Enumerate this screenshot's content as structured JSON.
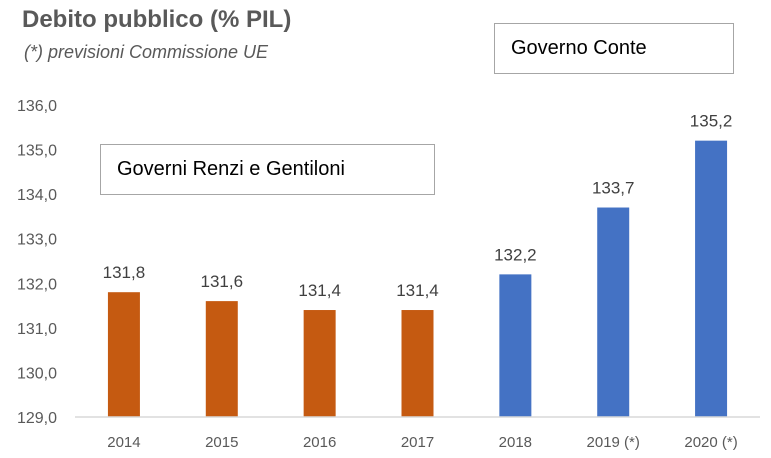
{
  "chart_data": {
    "type": "bar",
    "title": "Debito pubblico (% PIL)",
    "subtitle": "(*) previsioni Commissione UE",
    "categories": [
      "2014",
      "2015",
      "2016",
      "2017",
      "2018",
      "2019 (*)",
      "2020 (*)"
    ],
    "values": [
      131.8,
      131.6,
      131.4,
      131.4,
      132.2,
      133.7,
      135.2
    ],
    "data_labels": [
      "131,8",
      "131,6",
      "131,4",
      "131,4",
      "132,2",
      "133,7",
      "135,2"
    ],
    "ylim": [
      129.0,
      136.0
    ],
    "yticks": [
      "129,0",
      "130,0",
      "131,0",
      "132,0",
      "133,0",
      "134,0",
      "135,0",
      "136,0"
    ],
    "grid": false,
    "bar_colors": [
      "#c55a11",
      "#c55a11",
      "#c55a11",
      "#c55a11",
      "#4472c4",
      "#4472c4",
      "#4472c4"
    ],
    "annotations": {
      "conte": "Governo Conte",
      "renzi_gentiloni": "Governi Renzi e Gentiloni"
    }
  }
}
